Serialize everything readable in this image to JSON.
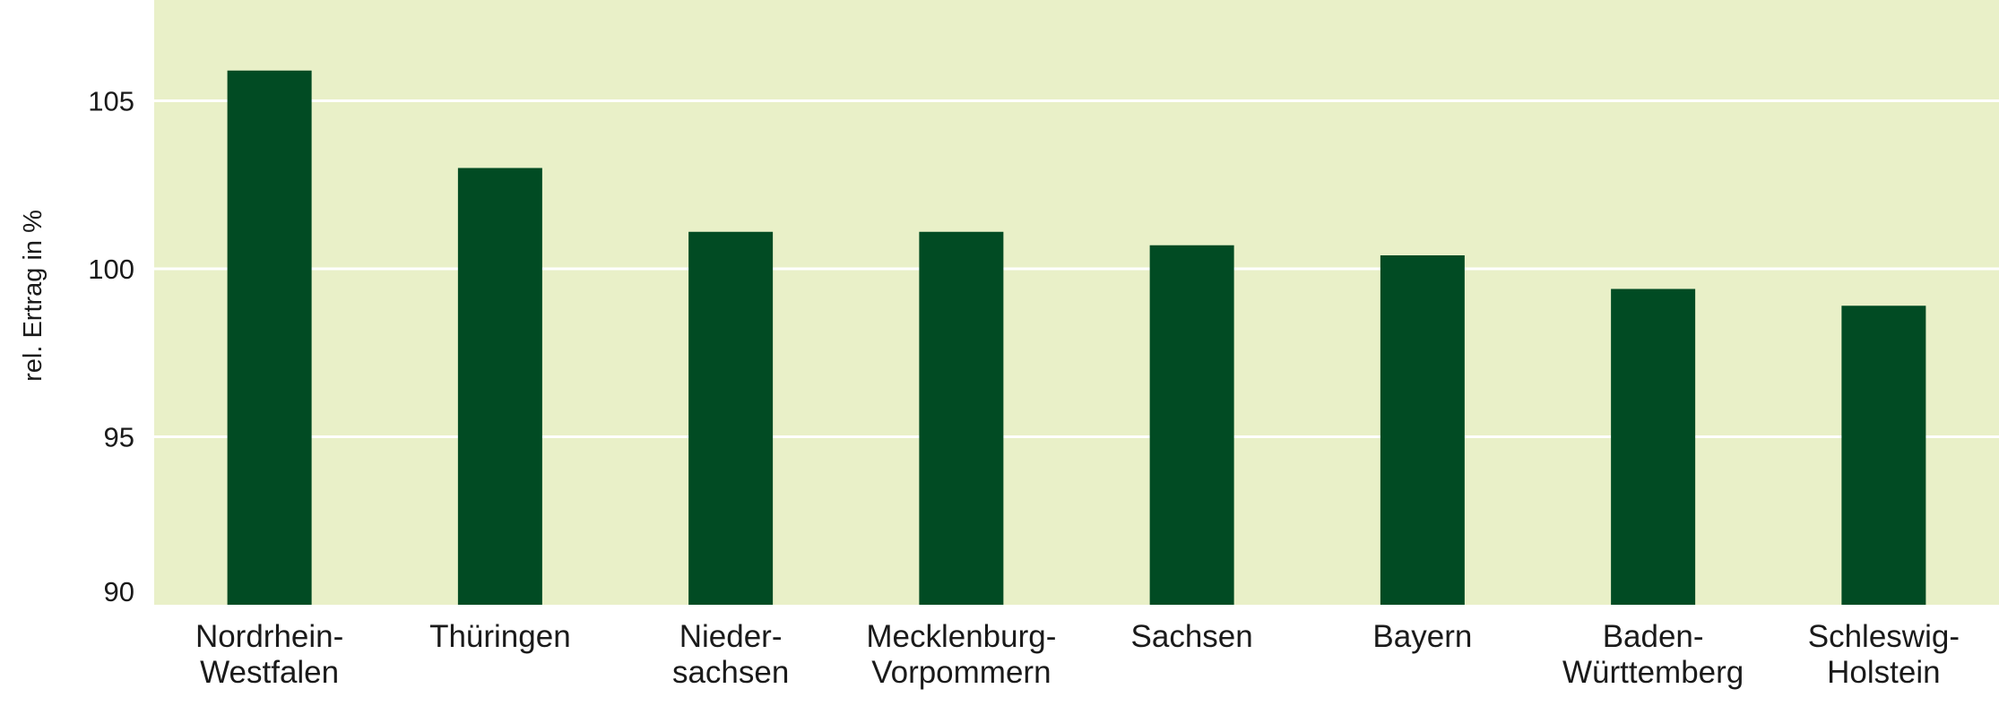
{
  "chart_data": {
    "type": "bar",
    "title": "",
    "xlabel": "",
    "ylabel": "rel. Ertrag in %",
    "categories": [
      [
        "Nordrhein-",
        "Westfalen"
      ],
      [
        "Thüringen"
      ],
      [
        "Nieder-",
        "sachsen"
      ],
      [
        "Mecklenburg-",
        "Vorpommern"
      ],
      [
        "Sachsen"
      ],
      [
        "Bayern"
      ],
      [
        "Baden-",
        "Württemberg"
      ],
      [
        "Schleswig-",
        "Holstein"
      ]
    ],
    "values": [
      105.9,
      103.0,
      101.1,
      101.1,
      100.7,
      100.4,
      99.4,
      98.9
    ],
    "ylim": [
      90,
      108
    ],
    "yticks": [
      90,
      95,
      100,
      105
    ],
    "grid": true,
    "colors": {
      "background": "#e9f0c8",
      "bar": "#014b23",
      "grid": "#ffffff"
    }
  }
}
